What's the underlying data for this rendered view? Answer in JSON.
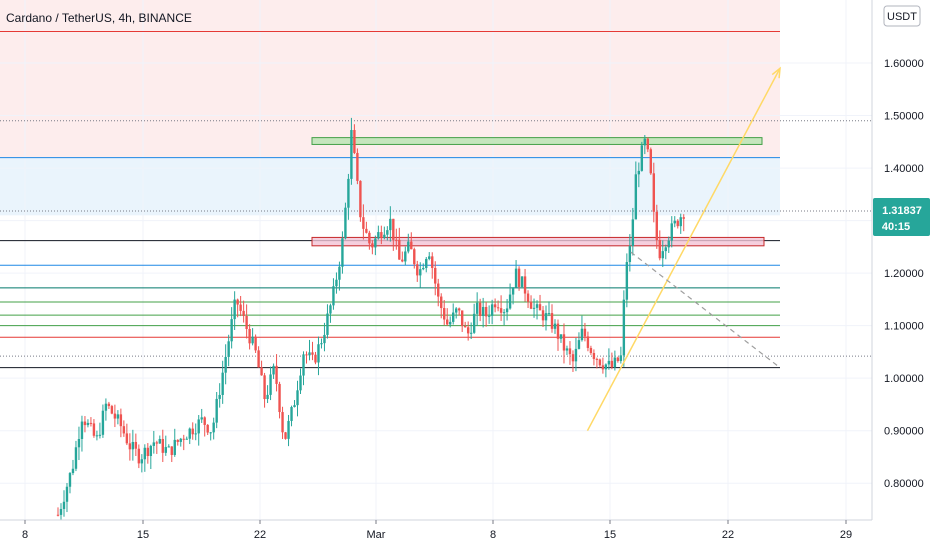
{
  "header": {
    "title": "Cardano / TetherUS, 4h, BINANCE",
    "currency_badge": "USDT"
  },
  "price_tag": {
    "price": "1.31837",
    "countdown": "40:15",
    "color": "#26a69a"
  },
  "colors": {
    "up": "#26a69a",
    "down": "#ef5350",
    "resistance_zone": "#fce8e8",
    "support_zone": "#eaf4fc",
    "green_box": "#b7e3b0",
    "pink_box": "#f3c3d6",
    "projection": "#ffd966"
  },
  "chart_data": {
    "type": "candlestick",
    "title": "Cardano / TetherUS, 4h, BINANCE",
    "x_ticks": [
      "8",
      "15",
      "22",
      "Mar",
      "8",
      "15",
      "22",
      "29"
    ],
    "y_ticks": [
      "0.80000",
      "0.90000",
      "1.00000",
      "1.10000",
      "1.20000",
      "1.30000",
      "1.40000",
      "1.50000",
      "1.60000"
    ],
    "ylim": [
      0.73,
      1.72
    ],
    "last_price": 1.31837,
    "horizontal_levels": [
      {
        "price": 1.66,
        "color": "#e53935"
      },
      {
        "price": 1.49,
        "color": "#787b86",
        "style": "dotted"
      },
      {
        "price": 1.42,
        "color": "#1e88e5"
      },
      {
        "price": 1.31837,
        "color": "#787b86",
        "style": "dotted"
      },
      {
        "price": 1.262,
        "color": "#131722"
      },
      {
        "price": 1.215,
        "color": "#1e88e5"
      },
      {
        "price": 1.172,
        "color": "#00796b"
      },
      {
        "price": 1.145,
        "color": "#43a047"
      },
      {
        "price": 1.12,
        "color": "#43a047"
      },
      {
        "price": 1.1,
        "color": "#43a047"
      },
      {
        "price": 1.078,
        "color": "#e53935"
      },
      {
        "price": 1.042,
        "color": "#787b86",
        "style": "dotted"
      },
      {
        "price": 1.02,
        "color": "#131722"
      }
    ],
    "path_points": [
      [
        0.74,
        0
      ],
      [
        0.83,
        3
      ],
      [
        0.93,
        5
      ],
      [
        0.88,
        8
      ],
      [
        0.95,
        10
      ],
      [
        0.91,
        13
      ],
      [
        0.87,
        15
      ],
      [
        0.85,
        17
      ],
      [
        0.88,
        20
      ],
      [
        0.86,
        23
      ],
      [
        0.89,
        26
      ],
      [
        0.92,
        30
      ],
      [
        0.9,
        32
      ],
      [
        1.05,
        35
      ],
      [
        1.15,
        37
      ],
      [
        1.1,
        39
      ],
      [
        1.05,
        41
      ],
      [
        0.96,
        43
      ],
      [
        1.02,
        45
      ],
      [
        0.88,
        47
      ],
      [
        0.95,
        49
      ],
      [
        1.05,
        51
      ],
      [
        1.03,
        53
      ],
      [
        1.08,
        55
      ],
      [
        1.15,
        57
      ],
      [
        1.25,
        59
      ],
      [
        1.35,
        60
      ],
      [
        1.47,
        61
      ],
      [
        1.38,
        62
      ],
      [
        1.3,
        63
      ],
      [
        1.25,
        65
      ],
      [
        1.28,
        67
      ],
      [
        1.3,
        69
      ],
      [
        1.22,
        71
      ],
      [
        1.25,
        73
      ],
      [
        1.2,
        75
      ],
      [
        1.25,
        77
      ],
      [
        1.15,
        79
      ],
      [
        1.1,
        81
      ],
      [
        1.13,
        83
      ],
      [
        1.08,
        85
      ],
      [
        1.13,
        87
      ],
      [
        1.12,
        89
      ],
      [
        1.15,
        91
      ],
      [
        1.13,
        93
      ],
      [
        1.2,
        95
      ],
      [
        1.17,
        97
      ],
      [
        1.13,
        99
      ],
      [
        1.12,
        101
      ],
      [
        1.1,
        103
      ],
      [
        1.06,
        105
      ],
      [
        1.03,
        107
      ],
      [
        1.09,
        109
      ],
      [
        1.05,
        111
      ],
      [
        1.03,
        113
      ],
      [
        1.02,
        115
      ],
      [
        1.04,
        117
      ],
      [
        1.22,
        118
      ],
      [
        1.25,
        119
      ],
      [
        1.38,
        120
      ],
      [
        1.42,
        121
      ],
      [
        1.45,
        122
      ],
      [
        1.4,
        123
      ],
      [
        1.28,
        124
      ],
      [
        1.24,
        125
      ],
      [
        1.26,
        126
      ],
      [
        1.29,
        128
      ],
      [
        1.31837,
        130
      ]
    ],
    "annotations": {
      "green_box": {
        "price_low": 1.445,
        "price_high": 1.458,
        "color": "#b7e3b0"
      },
      "pink_box": {
        "price_low": 1.252,
        "price_high": 1.268,
        "color": "#f3c3d6"
      },
      "resistance_zone": {
        "price_low": 1.42,
        "price_high": 1.72,
        "color": "#fce8e8"
      },
      "support_zone": {
        "price_low": 1.31,
        "price_high": 1.42,
        "color": "#eaf4fc"
      },
      "projection_arrow": {
        "from": [
          0.9,
          110
        ],
        "to": [
          1.59,
          150
        ],
        "color": "#ffd966"
      },
      "dashed_trendline": {
        "from": [
          1.24,
          119
        ],
        "to": [
          1.02,
          150
        ],
        "color": "#9e9e9e"
      }
    }
  }
}
